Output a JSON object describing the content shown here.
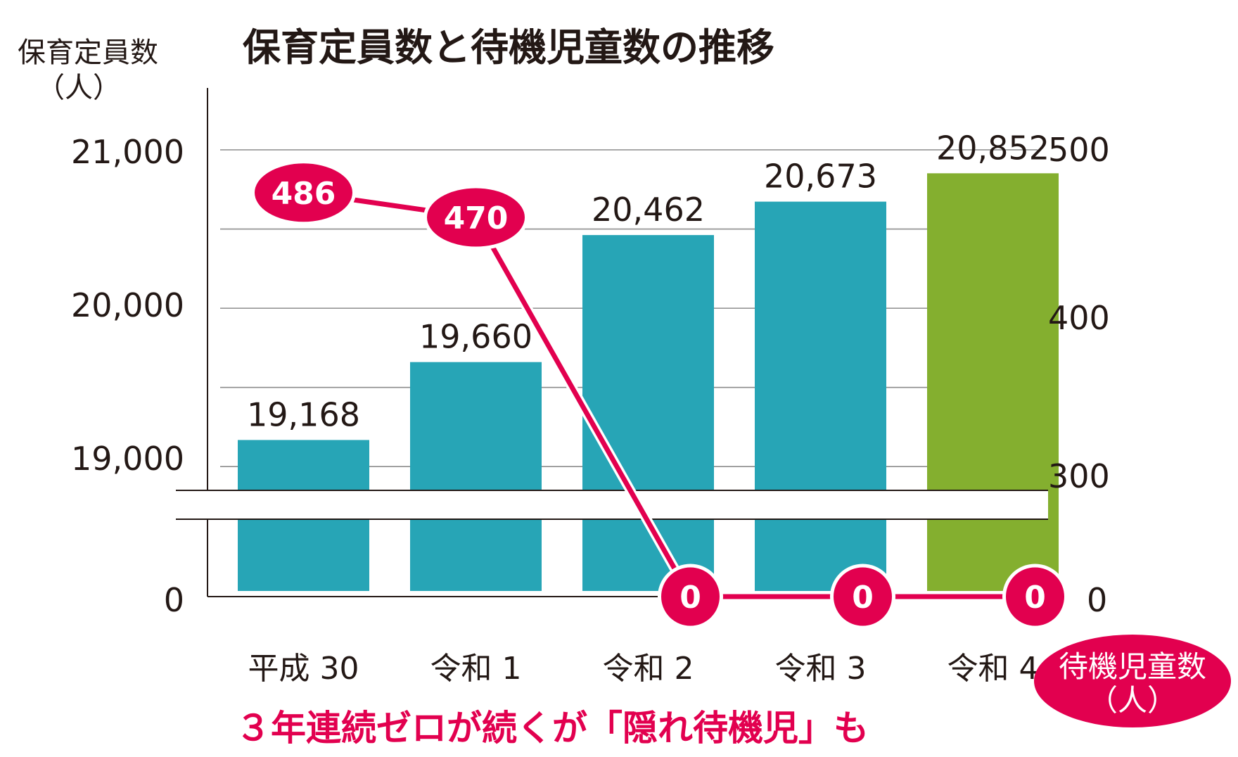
{
  "title": "保育定員数と待機児童数の推移",
  "left_axis": {
    "label_line1": "保育定員数",
    "label_line2": "（人）",
    "ticks": [
      "21,000",
      "20,000",
      "19,000",
      "0"
    ]
  },
  "right_axis": {
    "label_line1": "待機児童数",
    "label_line2": "（人）",
    "ticks": [
      "500",
      "400",
      "300",
      "0"
    ]
  },
  "caption": "３年連続ゼロが続くが「隠れ待機児」も",
  "colors": {
    "bar": "#27a5b6",
    "bar_highlight": "#84af2f",
    "line": "#e2004f",
    "grid": "#8c8c8c"
  },
  "chart_data": {
    "type": "bar",
    "categories": [
      "平成 30",
      "令和 1",
      "令和 2",
      "令和 3",
      "令和 4"
    ],
    "series": [
      {
        "name": "保育定員数",
        "type": "bar",
        "axis": "left",
        "values": [
          19168,
          19660,
          20462,
          20673,
          20852
        ],
        "labels": [
          "19,168",
          "19,660",
          "20,462",
          "20,673",
          "20,852"
        ]
      },
      {
        "name": "待機児童数",
        "type": "line",
        "axis": "right",
        "values": [
          486,
          470,
          0,
          0,
          0
        ],
        "labels": [
          "486",
          "470",
          "0",
          "0",
          "0"
        ]
      }
    ],
    "left_axis_range": [
      0,
      21000
    ],
    "left_axis_break": [
      0,
      18850
    ],
    "right_axis_range": [
      0,
      500
    ],
    "right_axis_break": [
      0,
      280
    ],
    "grid": true,
    "highlight_category_index": 4
  }
}
